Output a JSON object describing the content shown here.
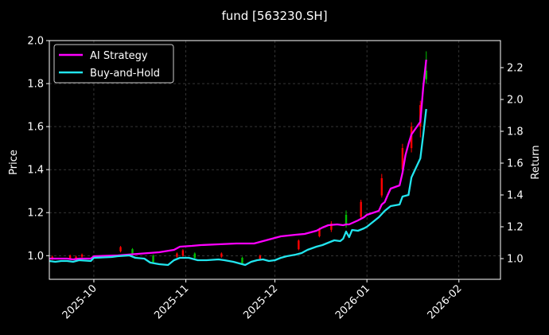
{
  "chart_data": {
    "type": "line",
    "title": "fund [563230.SH]",
    "ylabel_left": "Price",
    "ylabel_right": "Return",
    "grid": true,
    "legend_position": "top-left",
    "x_ticks": [
      "2025-10",
      "2025-11",
      "2025-12",
      "2026-01",
      "2026-02"
    ],
    "x_range": [
      "2025-09-16",
      "2026-02-15"
    ],
    "left_axis": {
      "range": [
        0.89,
        2.0
      ],
      "ticks": [
        "1.0",
        "1.2",
        "1.4",
        "1.6",
        "1.8",
        "2.0"
      ]
    },
    "right_axis": {
      "range": [
        0.87,
        2.37
      ],
      "ticks": [
        "1.0",
        "1.2",
        "1.4",
        "1.6",
        "1.8",
        "2.0",
        "2.2"
      ]
    },
    "colors": {
      "ai": "#ff00ff",
      "bh": "#22e5ee",
      "up": "#ff0000",
      "down": "#00c000",
      "grid": "#555555"
    },
    "series": [
      {
        "name": "AI Strategy",
        "axis": "right",
        "points": [
          [
            "2025-09-16",
            1.0
          ],
          [
            "2025-09-22",
            1.0
          ],
          [
            "2025-09-24",
            0.995
          ],
          [
            "2025-09-26",
            1.0
          ],
          [
            "2025-09-30",
            1.0
          ],
          [
            "2025-10-01",
            1.015
          ],
          [
            "2025-10-09",
            1.02
          ],
          [
            "2025-10-16",
            1.03
          ],
          [
            "2025-10-23",
            1.04
          ],
          [
            "2025-10-28",
            1.055
          ],
          [
            "2025-10-30",
            1.075
          ],
          [
            "2025-11-03",
            1.08
          ],
          [
            "2025-11-06",
            1.085
          ],
          [
            "2025-11-12",
            1.09
          ],
          [
            "2025-11-18",
            1.095
          ],
          [
            "2025-11-24",
            1.095
          ],
          [
            "2025-11-26",
            1.105
          ],
          [
            "2025-11-28",
            1.115
          ],
          [
            "2025-12-01",
            1.13
          ],
          [
            "2025-12-03",
            1.14
          ],
          [
            "2025-12-08",
            1.15
          ],
          [
            "2025-12-11",
            1.155
          ],
          [
            "2025-12-15",
            1.175
          ],
          [
            "2025-12-17",
            1.195
          ],
          [
            "2025-12-19",
            1.21
          ],
          [
            "2025-12-22",
            1.215
          ],
          [
            "2025-12-24",
            1.21
          ],
          [
            "2025-12-25",
            1.215
          ],
          [
            "2025-12-26",
            1.215
          ],
          [
            "2025-12-29",
            1.24
          ],
          [
            "2025-12-31",
            1.26
          ],
          [
            "2026-01-01",
            1.275
          ],
          [
            "2026-01-05",
            1.3
          ],
          [
            "2026-01-06",
            1.34
          ],
          [
            "2026-01-07",
            1.355
          ],
          [
            "2026-01-08",
            1.4
          ],
          [
            "2026-01-09",
            1.44
          ],
          [
            "2026-01-12",
            1.46
          ],
          [
            "2026-01-13",
            1.54
          ],
          [
            "2026-01-14",
            1.65
          ],
          [
            "2026-01-15",
            1.72
          ],
          [
            "2026-01-16",
            1.78
          ],
          [
            "2026-01-19",
            1.86
          ],
          [
            "2026-01-20",
            2.08
          ],
          [
            "2026-01-21",
            2.25
          ]
        ]
      },
      {
        "name": "Buy-and-Hold",
        "axis": "right",
        "points": [
          [
            "2025-09-16",
            0.985
          ],
          [
            "2025-09-18",
            0.98
          ],
          [
            "2025-09-20",
            0.985
          ],
          [
            "2025-09-22",
            0.985
          ],
          [
            "2025-09-24",
            0.98
          ],
          [
            "2025-09-26",
            0.99
          ],
          [
            "2025-09-30",
            0.985
          ],
          [
            "2025-10-01",
            1.005
          ],
          [
            "2025-10-07",
            1.01
          ],
          [
            "2025-10-09",
            1.015
          ],
          [
            "2025-10-13",
            1.02
          ],
          [
            "2025-10-15",
            1.005
          ],
          [
            "2025-10-18",
            1.0
          ],
          [
            "2025-10-20",
            0.975
          ],
          [
            "2025-10-23",
            0.965
          ],
          [
            "2025-10-26",
            0.96
          ],
          [
            "2025-10-28",
            0.99
          ],
          [
            "2025-10-30",
            1.005
          ],
          [
            "2025-11-02",
            1.005
          ],
          [
            "2025-11-05",
            0.99
          ],
          [
            "2025-11-08",
            0.99
          ],
          [
            "2025-11-12",
            0.995
          ],
          [
            "2025-11-14",
            0.99
          ],
          [
            "2025-11-17",
            0.98
          ],
          [
            "2025-11-19",
            0.97
          ],
          [
            "2025-11-21",
            0.96
          ],
          [
            "2025-11-23",
            0.98
          ],
          [
            "2025-11-25",
            0.99
          ],
          [
            "2025-11-27",
            0.995
          ],
          [
            "2025-11-29",
            0.985
          ],
          [
            "2025-12-01",
            0.99
          ],
          [
            "2025-12-03",
            1.005
          ],
          [
            "2025-12-05",
            1.015
          ],
          [
            "2025-12-08",
            1.025
          ],
          [
            "2025-12-10",
            1.035
          ],
          [
            "2025-12-12",
            1.055
          ],
          [
            "2025-12-15",
            1.075
          ],
          [
            "2025-12-17",
            1.085
          ],
          [
            "2025-12-19",
            1.1
          ],
          [
            "2025-12-21",
            1.115
          ],
          [
            "2025-12-23",
            1.11
          ],
          [
            "2025-12-24",
            1.125
          ],
          [
            "2025-12-25",
            1.17
          ],
          [
            "2025-12-26",
            1.135
          ],
          [
            "2025-12-27",
            1.18
          ],
          [
            "2025-12-29",
            1.175
          ],
          [
            "2025-12-31",
            1.19
          ],
          [
            "2026-01-01",
            1.2
          ],
          [
            "2026-01-05",
            1.26
          ],
          [
            "2026-01-07",
            1.3
          ],
          [
            "2026-01-09",
            1.33
          ],
          [
            "2026-01-12",
            1.34
          ],
          [
            "2026-01-13",
            1.39
          ],
          [
            "2026-01-15",
            1.4
          ],
          [
            "2026-01-16",
            1.51
          ],
          [
            "2026-01-19",
            1.63
          ],
          [
            "2026-01-20",
            1.78
          ],
          [
            "2026-01-21",
            1.94
          ]
        ]
      }
    ],
    "candles": {
      "axis": "left",
      "items": [
        {
          "date": "2025-09-17",
          "open": 0.985,
          "high": 1.0,
          "low": 0.98,
          "close": 0.995
        },
        {
          "date": "2025-09-23",
          "open": 0.985,
          "high": 1.005,
          "low": 0.98,
          "close": 1.0
        },
        {
          "date": "2025-09-25",
          "open": 0.98,
          "high": 1.0,
          "low": 0.975,
          "close": 0.995
        },
        {
          "date": "2025-09-27",
          "open": 0.995,
          "high": 1.01,
          "low": 0.985,
          "close": 1.005
        },
        {
          "date": "2025-10-10",
          "open": 1.02,
          "high": 1.045,
          "low": 1.015,
          "close": 1.04
        },
        {
          "date": "2025-10-14",
          "open": 1.03,
          "high": 1.035,
          "low": 1.0,
          "close": 1.005
        },
        {
          "date": "2025-10-21",
          "open": 1.0,
          "high": 1.005,
          "low": 0.965,
          "close": 0.97
        },
        {
          "date": "2025-10-29",
          "open": 0.995,
          "high": 1.015,
          "low": 0.99,
          "close": 1.01
        },
        {
          "date": "2025-10-31",
          "open": 1.0,
          "high": 1.03,
          "low": 0.995,
          "close": 1.025
        },
        {
          "date": "2025-11-04",
          "open": 1.01,
          "high": 1.015,
          "low": 0.985,
          "close": 0.99
        },
        {
          "date": "2025-11-13",
          "open": 0.995,
          "high": 1.015,
          "low": 0.99,
          "close": 1.01
        },
        {
          "date": "2025-11-20",
          "open": 0.99,
          "high": 0.995,
          "low": 0.96,
          "close": 0.965
        },
        {
          "date": "2025-11-26",
          "open": 0.985,
          "high": 1.005,
          "low": 0.98,
          "close": 1.0
        },
        {
          "date": "2025-12-09",
          "open": 1.03,
          "high": 1.075,
          "low": 1.025,
          "close": 1.07
        },
        {
          "date": "2025-12-16",
          "open": 1.09,
          "high": 1.13,
          "low": 1.085,
          "close": 1.12
        },
        {
          "date": "2025-12-20",
          "open": 1.12,
          "high": 1.16,
          "low": 1.11,
          "close": 1.15
        },
        {
          "date": "2025-12-25",
          "open": 1.19,
          "high": 1.21,
          "low": 1.13,
          "close": 1.14
        },
        {
          "date": "2025-12-30",
          "open": 1.18,
          "high": 1.26,
          "low": 1.17,
          "close": 1.25
        },
        {
          "date": "2026-01-06",
          "open": 1.28,
          "high": 1.38,
          "low": 1.27,
          "close": 1.36
        },
        {
          "date": "2026-01-13",
          "open": 1.4,
          "high": 1.52,
          "low": 1.38,
          "close": 1.5
        },
        {
          "date": "2026-01-16",
          "open": 1.5,
          "high": 1.62,
          "low": 1.48,
          "close": 1.6
        },
        {
          "date": "2026-01-19",
          "open": 1.6,
          "high": 1.72,
          "low": 1.55,
          "close": 1.7
        },
        {
          "date": "2026-01-21",
          "open": 1.86,
          "high": 1.95,
          "low": 1.8,
          "close": 1.82
        }
      ]
    }
  }
}
